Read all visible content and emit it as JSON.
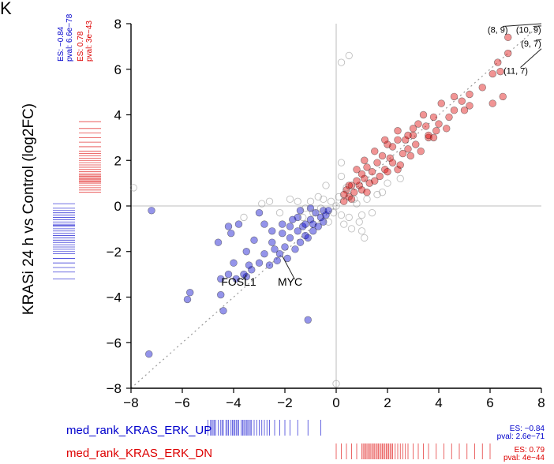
{
  "figure": {
    "panel_letter": "K",
    "colors": {
      "up": "#0000cc",
      "dn": "#dd0000",
      "neutral": "#7a7a7a"
    },
    "left_stats": [
      {
        "es": "ES: −0.84",
        "pval": "pval: 6.6e−78",
        "color": "#0000cc"
      },
      {
        "es": "ES: 0.78",
        "pval": "pval: 3e−43",
        "color": "#dd0000"
      }
    ],
    "bottom_rows": [
      {
        "label": "med_rank_KRAS_ERK_UP",
        "es": "ES: −0.84",
        "pval": "pval: 2.6e−71",
        "color": "#0000cc"
      },
      {
        "label": "med_rank_KRAS_ERK_DN",
        "es": "ES: 0.79",
        "pval": "pval: 4e−44",
        "color": "#dd0000"
      }
    ]
  },
  "chart_data": {
    "type": "scatter",
    "title": "",
    "xlabel": "",
    "ylabel": "KRASi 24 h vs Control (log2FC)",
    "xlim": [
      -8,
      8
    ],
    "ylim": [
      -8,
      8
    ],
    "x_ticks": [
      -8,
      -6,
      -4,
      -2,
      0,
      2,
      4,
      6,
      8
    ],
    "y_ticks": [
      -8,
      -6,
      -4,
      -2,
      0,
      2,
      4,
      6,
      8
    ],
    "x_tick_labels": [
      "−8",
      "−6",
      "−4",
      "−2",
      "0",
      "2",
      "4",
      "6",
      "8"
    ],
    "y_tick_labels": [
      "−8",
      "−6",
      "−4",
      "−2",
      "0",
      "2",
      "4",
      "6",
      "8"
    ],
    "grid": false,
    "reference_lines": [
      "x=0",
      "y=0",
      "diagonal y=x (dotted)"
    ],
    "series": [
      {
        "name": "med_rank_KRAS_ERK_UP",
        "color": "#0000cc",
        "points": [
          [
            -7.3,
            -6.5
          ],
          [
            -7.2,
            -0.2
          ],
          [
            -5.7,
            -3.8
          ],
          [
            -5.8,
            -4.1
          ],
          [
            -4.5,
            -3.2
          ],
          [
            -4.2,
            -3.0
          ],
          [
            -4.5,
            -3.9
          ],
          [
            -4.4,
            -4.6
          ],
          [
            -4.0,
            -2.5
          ],
          [
            -3.9,
            -3.2
          ],
          [
            -4.1,
            -1.2
          ],
          [
            -3.5,
            -2.0
          ],
          [
            -3.2,
            -1.5
          ],
          [
            -3.3,
            -2.8
          ],
          [
            -3.5,
            -3.1
          ],
          [
            -4.6,
            -1.6
          ],
          [
            -4.2,
            -0.9
          ],
          [
            -1.1,
            -5.0
          ],
          [
            -3.6,
            -3.0
          ],
          [
            -3.8,
            -0.8
          ],
          [
            -3.0,
            -0.3
          ],
          [
            -2.8,
            -0.8
          ],
          [
            -2.5,
            -1.1
          ],
          [
            -2.5,
            -1.6
          ],
          [
            -2.2,
            -2.1
          ],
          [
            -2.0,
            -1.8
          ],
          [
            -2.1,
            -1.2
          ],
          [
            -1.8,
            -1.4
          ],
          [
            -1.8,
            -0.9
          ],
          [
            -1.5,
            -1.1
          ],
          [
            -1.5,
            -0.5
          ],
          [
            -1.3,
            -0.9
          ],
          [
            -1.2,
            -1.3
          ],
          [
            -1.0,
            -0.6
          ],
          [
            -0.9,
            -0.8
          ],
          [
            -0.8,
            -0.3
          ],
          [
            -0.6,
            -0.5
          ],
          [
            -0.5,
            -0.2
          ],
          [
            -2.8,
            -2.1
          ],
          [
            -3.0,
            -2.5
          ],
          [
            -2.6,
            -2.6
          ],
          [
            -2.3,
            -2.4
          ],
          [
            -1.9,
            -2.3
          ],
          [
            -1.6,
            -1.9
          ],
          [
            -1.4,
            -1.6
          ],
          [
            -1.1,
            -1.4
          ],
          [
            -0.9,
            -1.1
          ],
          [
            -0.7,
            -0.9
          ],
          [
            -0.5,
            -0.7
          ],
          [
            -0.4,
            -0.4
          ],
          [
            -2.1,
            -0.8
          ],
          [
            -1.7,
            -0.6
          ],
          [
            -1.4,
            -0.2
          ],
          [
            -1.0,
            -0.1
          ],
          [
            -2.4,
            -1.9
          ],
          [
            -3.4,
            -2.6
          ],
          [
            -1.2,
            -0.8
          ],
          [
            -0.3,
            -0.2
          ]
        ]
      },
      {
        "name": "med_rank_KRAS_ERK_DN",
        "color": "#dd0000",
        "points": [
          [
            6.7,
            7.4
          ],
          [
            6.3,
            6.3
          ],
          [
            6.4,
            5.9
          ],
          [
            6.1,
            5.8
          ],
          [
            6.7,
            6.7
          ],
          [
            6.5,
            4.8
          ],
          [
            6.1,
            4.5
          ],
          [
            5.7,
            5.2
          ],
          [
            5.2,
            4.9
          ],
          [
            4.9,
            4.6
          ],
          [
            5.0,
            4.2
          ],
          [
            4.6,
            4.2
          ],
          [
            4.6,
            4.8
          ],
          [
            4.0,
            3.6
          ],
          [
            3.8,
            3.9
          ],
          [
            3.6,
            3.0
          ],
          [
            3.5,
            3.5
          ],
          [
            3.4,
            4.0
          ],
          [
            3.2,
            3.6
          ],
          [
            3.0,
            3.1
          ],
          [
            2.8,
            3.1
          ],
          [
            2.6,
            2.3
          ],
          [
            2.4,
            2.9
          ],
          [
            2.2,
            2.6
          ],
          [
            2.1,
            2.1
          ],
          [
            2.0,
            2.7
          ],
          [
            1.8,
            2.2
          ],
          [
            1.6,
            1.9
          ],
          [
            1.5,
            2.4
          ],
          [
            1.4,
            1.5
          ],
          [
            1.2,
            1.7
          ],
          [
            1.1,
            1.2
          ],
          [
            1.0,
            1.4
          ],
          [
            0.9,
            0.9
          ],
          [
            0.8,
            1.1
          ],
          [
            0.7,
            0.6
          ],
          [
            0.6,
            0.9
          ],
          [
            0.5,
            0.4
          ],
          [
            0.4,
            0.7
          ],
          [
            0.3,
            0.2
          ],
          [
            2.4,
            1.6
          ],
          [
            2.8,
            2.5
          ],
          [
            3.1,
            2.7
          ],
          [
            3.3,
            2.4
          ],
          [
            2.5,
            1.8
          ],
          [
            1.9,
            1.6
          ],
          [
            1.3,
            1.0
          ],
          [
            1.7,
            1.3
          ],
          [
            2.2,
            1.9
          ],
          [
            2.9,
            2.2
          ],
          [
            3.6,
            3.1
          ],
          [
            3.9,
            3.3
          ],
          [
            4.4,
            3.9
          ],
          [
            1.0,
            0.7
          ],
          [
            0.6,
            0.3
          ],
          [
            1.5,
            1.1
          ],
          [
            2.0,
            1.5
          ],
          [
            2.7,
            2.9
          ],
          [
            3.0,
            3.4
          ],
          [
            4.1,
            4.5
          ],
          [
            4.3,
            3.4
          ],
          [
            5.2,
            4.4
          ],
          [
            1.1,
            2.0
          ],
          [
            0.8,
            1.6
          ],
          [
            0.3,
            0.5
          ],
          [
            1.9,
            2.9
          ],
          [
            2.4,
            3.3
          ],
          [
            3.8,
            3.0
          ],
          [
            1.2,
            0.6
          ],
          [
            0.5,
            0.9
          ]
        ]
      },
      {
        "name": "other",
        "color": "#7a7a7a",
        "points": [
          [
            0.2,
            6.3
          ],
          [
            0.5,
            6.6
          ],
          [
            -7.9,
            0.8
          ],
          [
            0.0,
            -7.8
          ],
          [
            0.2,
            -0.4
          ],
          [
            0.5,
            -0.5
          ],
          [
            1.0,
            -0.4
          ],
          [
            0.7,
            0.3
          ],
          [
            -0.2,
            0.2
          ],
          [
            -0.5,
            0.3
          ],
          [
            -1.0,
            0.2
          ],
          [
            -0.3,
            -0.7
          ],
          [
            0.3,
            -0.8
          ],
          [
            1.6,
            0.5
          ],
          [
            1.2,
            0.3
          ],
          [
            2.0,
            1.0
          ],
          [
            -1.2,
            -0.1
          ],
          [
            -1.5,
            0.2
          ],
          [
            -0.7,
            0.4
          ],
          [
            0.9,
            -0.7
          ],
          [
            1.1,
            -1.4
          ],
          [
            0.0,
            0.0
          ],
          [
            -0.1,
            -0.3
          ],
          [
            0.1,
            0.4
          ],
          [
            1.0,
            -1.1
          ],
          [
            -2.2,
            -0.3
          ],
          [
            -2.6,
            0.2
          ],
          [
            0.4,
            0.8
          ],
          [
            -0.4,
            0.9
          ],
          [
            -1.8,
            0.3
          ],
          [
            1.4,
            -0.3
          ],
          [
            0.6,
            -1.0
          ],
          [
            -0.6,
            -0.1
          ],
          [
            0.2,
            1.3
          ],
          [
            -0.9,
            -0.3
          ],
          [
            2.5,
            1.2
          ],
          [
            1.8,
            0.6
          ],
          [
            -3.6,
            -0.5
          ],
          [
            -2.9,
            0.1
          ],
          [
            0.2,
            1.9
          ],
          [
            0.8,
            0.1
          ],
          [
            -1.3,
            -0.5
          ]
        ]
      }
    ],
    "annotations": [
      {
        "text": "FOSL1",
        "x": -3.5,
        "y": -3.0,
        "label_x": -3.8,
        "label_y": -3.5
      },
      {
        "text": "MYC",
        "x": -2.1,
        "y": -2.2,
        "label_x": -1.8,
        "label_y": -3.5
      },
      {
        "text": "(8, 9)",
        "x": 8.0,
        "y": 8.0,
        "label_x": 6.3,
        "label_y": 7.6
      },
      {
        "text": "(10, 9)",
        "x": 8.0,
        "y": 7.9,
        "label_x": 7.5,
        "label_y": 7.6
      },
      {
        "text": "(9, 7)",
        "x": 8.0,
        "y": 7.3,
        "label_x": 7.6,
        "label_y": 7.0
      },
      {
        "text": "(11, 7)",
        "x": 8.0,
        "y": 6.9,
        "label_x": 7.0,
        "label_y": 5.8
      }
    ],
    "rug_up_x": [
      -5.0,
      -4.9,
      -4.85,
      -4.8,
      -4.75,
      -4.7,
      -4.6,
      -4.5,
      -4.45,
      -4.4,
      -4.3,
      -4.25,
      -4.2,
      -4.1,
      -4.05,
      -4.0,
      -3.95,
      -3.9,
      -3.85,
      -3.8,
      -3.7,
      -3.65,
      -3.6,
      -3.55,
      -3.5,
      -3.45,
      -3.4,
      -3.35,
      -3.3,
      -3.2,
      -3.1,
      -3.0,
      -2.9,
      -2.8,
      -2.7,
      -2.6,
      -2.4,
      -2.2,
      -2.0,
      -1.8,
      -1.5,
      -1.1,
      -0.6
    ],
    "rug_dn_x": [
      0.0,
      0.2,
      0.4,
      0.6,
      0.8,
      1.0,
      1.05,
      1.1,
      1.15,
      1.2,
      1.25,
      1.3,
      1.35,
      1.4,
      1.45,
      1.5,
      1.55,
      1.6,
      1.65,
      1.7,
      1.75,
      1.8,
      1.85,
      1.9,
      1.95,
      2.0,
      2.05,
      2.1,
      2.15,
      2.2,
      2.3,
      2.4,
      2.5,
      2.6,
      2.7,
      2.8,
      3.0,
      3.2,
      3.4,
      3.6,
      3.9,
      4.2,
      4.5,
      4.8,
      5.1,
      5.4,
      5.7,
      6.0
    ],
    "rug_up_y": [
      -3.2,
      -2.9,
      -2.7,
      -2.5,
      -2.3,
      -2.1,
      -2.0,
      -1.9,
      -1.8,
      -1.7,
      -1.6,
      -1.5,
      -1.4,
      -1.3,
      -1.2,
      -1.1,
      -1.0,
      -0.9,
      -0.85,
      -0.8,
      -0.7,
      -0.6,
      -0.5,
      -0.4,
      -0.3,
      -0.2,
      -0.1,
      0.1
    ],
    "rug_dn_y": [
      0.6,
      0.7,
      0.8,
      0.9,
      1.0,
      1.05,
      1.1,
      1.15,
      1.2,
      1.25,
      1.3,
      1.35,
      1.4,
      1.5,
      1.6,
      1.7,
      1.8,
      1.9,
      2.0,
      2.1,
      2.2,
      2.3,
      2.4,
      2.6,
      2.8,
      3.0,
      3.2,
      3.4,
      3.7
    ]
  }
}
